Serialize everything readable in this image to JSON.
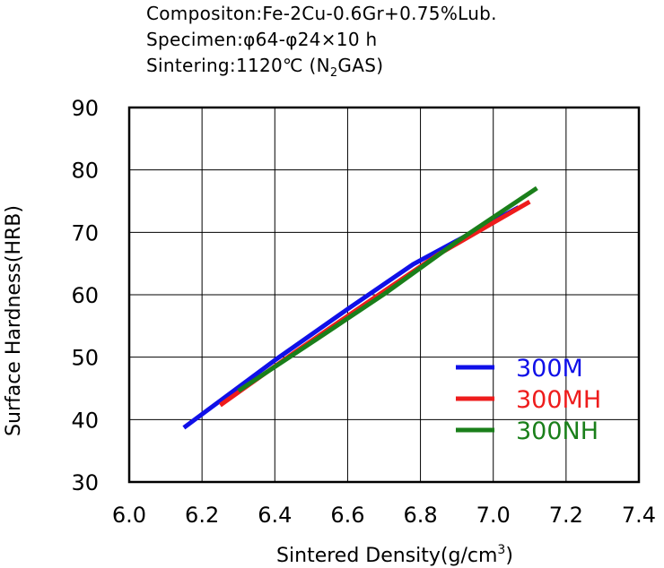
{
  "chart_data": {
    "type": "line",
    "notes": [
      "Compositon:Fe-2Cu-0.6Gr+0.75%Lub.",
      "Specimen:φ64-φ24×10 h",
      "Sintering:1120℃ (N",
      "2",
      "GAS)"
    ],
    "xlabel": "Sintered Density(g/cm",
    "xlabel_sup": "3",
    "xlabel_end": ")",
    "ylabel": "Surface Hardness(HRB)",
    "xlim": [
      6.0,
      7.4
    ],
    "ylim": [
      30,
      90
    ],
    "xticks": [
      "6.0",
      "6.2",
      "6.4",
      "6.6",
      "6.8",
      "7.0",
      "7.2",
      "7.4"
    ],
    "yticks": [
      "30",
      "40",
      "50",
      "60",
      "70",
      "80",
      "90"
    ],
    "grid": true,
    "legend_position": "bottom-right",
    "series": [
      {
        "name": "300M",
        "color": "#1010e8",
        "x": [
          6.15,
          6.4,
          6.6,
          6.78,
          7.07
        ],
        "y": [
          38.7,
          49.5,
          57.7,
          64.9,
          74.0
        ]
      },
      {
        "name": "300MH",
        "color": "#ee1c1c",
        "x": [
          6.25,
          6.45,
          6.65,
          6.85,
          7.1
        ],
        "y": [
          42.3,
          50.6,
          58.6,
          66.5,
          74.9
        ]
      },
      {
        "name": "300NH",
        "color": "#1a7f1a",
        "x": [
          6.3,
          6.5,
          6.7,
          6.9,
          7.12
        ],
        "y": [
          44.6,
          52.3,
          60.1,
          68.5,
          77.1
        ]
      }
    ]
  }
}
